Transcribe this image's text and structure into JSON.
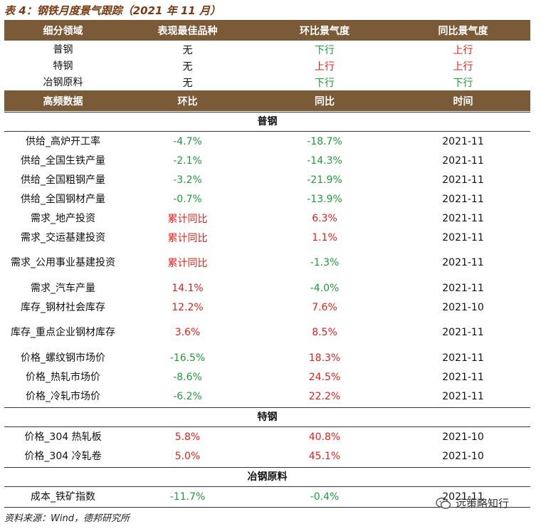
{
  "title": "表 4：钢铁月度景气跟踪（2021 年 11 月）",
  "top_table": {
    "headers": [
      "细分领域",
      "表现最佳品种",
      "环比景气度",
      "同比景气度"
    ],
    "rows": [
      [
        "普钢",
        "无",
        "下行",
        "上行"
      ],
      [
        "特钢",
        "无",
        "上行",
        "上行"
      ],
      [
        "冶钢原料",
        "无",
        "下行",
        "下行"
      ]
    ]
  },
  "data_table": {
    "headers": [
      "高频数据",
      "环比",
      "同比",
      "时间"
    ],
    "sections": [
      {
        "name": "普钢",
        "rows": [
          [
            "供给_高炉开工率",
            "-4.7%",
            "-18.7%",
            "2021-11"
          ],
          [
            "供给_全国生铁产量",
            "-2.1%",
            "-14.3%",
            "2021-11"
          ],
          [
            "供给_全国粗钢产量",
            "-3.2%",
            "-21.9%",
            "2021-11"
          ],
          [
            "供给_全国钢材产量",
            "-0.7%",
            "-13.9%",
            "2021-11"
          ],
          [
            "需求_地产投资",
            "累计同比",
            "6.3%",
            "2021-11"
          ],
          [
            "需求_交运基建投资",
            "累计同比",
            "1.1%",
            "2021-11"
          ],
          [
            "需求_公用事业基建投资",
            "累计同比",
            "-1.3%",
            "2021-11"
          ],
          [
            "需求_汽车产量",
            "14.1%",
            "-4.0%",
            "2021-11"
          ],
          [
            "库存_钢材社会库存",
            "12.2%",
            "7.6%",
            "2021-10"
          ],
          [
            "库存_重点企业钢材库存",
            "3.6%",
            "8.5%",
            "2021-11"
          ],
          [
            "价格_螺纹钢市场价",
            "-16.5%",
            "18.3%",
            "2021-11"
          ],
          [
            "价格_热轧市场价",
            "-8.6%",
            "24.5%",
            "2021-11"
          ],
          [
            "价格_冷轧市场价",
            "-6.2%",
            "22.2%",
            "2021-11"
          ]
        ]
      },
      {
        "name": "特钢",
        "rows": [
          [
            "价格_304 热轧板",
            "5.8%",
            "40.8%",
            "2021-10"
          ],
          [
            "价格_304 冷轧卷",
            "5.0%",
            "45.1%",
            "2021-10"
          ]
        ]
      },
      {
        "name": "冶钢原料",
        "rows": [
          [
            "成本_铁矿指数",
            "-11.7%",
            "-0.4%",
            "2021-11"
          ]
        ]
      }
    ]
  },
  "footer": "资料来源：Wind，德邦研究所",
  "watermark": "远策略知行",
  "colors": {
    "header_bg": "#7a5a37",
    "up_red": "#e32018",
    "down_green": "#1e9b3a"
  }
}
